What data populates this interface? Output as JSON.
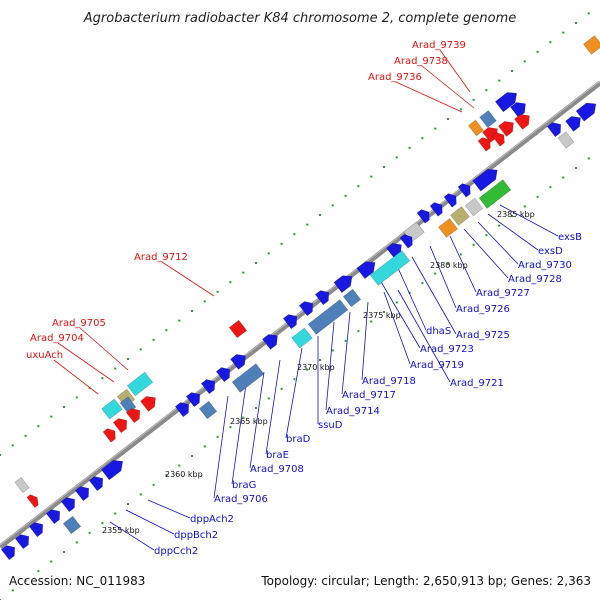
{
  "title": "Agrobacterium radiobacter K84 chromosome 2, complete genome",
  "footer": {
    "accession": "Accession: NC_011983",
    "topology": "Topology: circular; Length: 2,650,913 bp; Genes: 2,363"
  },
  "scale_labels": [
    "2355 kbp",
    "2360 kbp",
    "2365 kbp",
    "2370 kbp",
    "2375 kbp",
    "2380 kbp",
    "2385 kbp"
  ],
  "blue_labels": [
    "exsB",
    "exsD",
    "Arad_9730",
    "Arad_9728",
    "Arad_9727",
    "Arad_9726",
    "Arad_9725",
    "dhaS",
    "Arad_9723",
    "Arad_9721",
    "Arad_9719",
    "Arad_9718",
    "Arad_9717",
    "Arad_9714",
    "ssuD",
    "braD",
    "braE",
    "Arad_9708",
    "braG",
    "Arad_9706",
    "dppAch2",
    "dppBch2",
    "dppCch2"
  ],
  "red_labels": [
    "Arad_9739",
    "Arad_9738",
    "Arad_9736",
    "Arad_9712",
    "Arad_9705",
    "Arad_9704",
    "uxuAch"
  ],
  "colors": {
    "gene_blue": "#1818e0",
    "gene_red": "#ee1515",
    "gene_cyan": "#33d8dc",
    "gene_steel": "#4f7fb8",
    "gene_green": "#33bb33",
    "gene_orange": "#f09020",
    "gene_khaki": "#b8b070",
    "gene_gray": "#c8c8c8",
    "label_blue": "#1010c8",
    "label_red": "#e01010",
    "backbone": "#8a8a8a",
    "dots": "#2a9a2a"
  }
}
